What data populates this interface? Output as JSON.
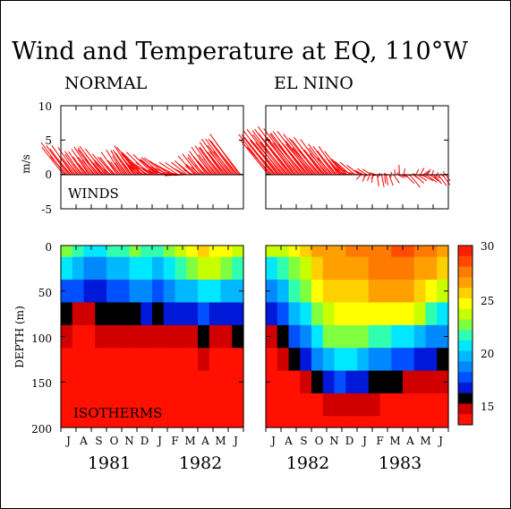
{
  "chart_data": {
    "title": "Wind and Temperature at EQ, 110°W",
    "panels": {
      "normal_title": "NORMAL",
      "elnino_title": "EL NINO"
    },
    "winds": {
      "type": "vector-stick",
      "ylabel": "m/s",
      "label": "WINDS",
      "ylim": [
        -5,
        10
      ],
      "yticks": [
        "10",
        "5",
        "0",
        "-5"
      ],
      "normal": [
        [
          3.5,
          4.0
        ],
        [
          2.5,
          3.0
        ],
        [
          2.0,
          2.5
        ],
        [
          3.0,
          3.5
        ],
        [
          2.2,
          2.0
        ],
        [
          1.8,
          2.6
        ],
        [
          2.5,
          3.2
        ],
        [
          3.4,
          2.4
        ],
        [
          2.6,
          1.8
        ],
        [
          3.0,
          1.2
        ],
        [
          2.2,
          0.6
        ],
        [
          2.0,
          1.6
        ],
        [
          2.2,
          2.5
        ],
        [
          2.8,
          3.4
        ],
        [
          3.6,
          4.2
        ],
        [
          4.2,
          5.0
        ]
      ],
      "elnino": [
        [
          4.5,
          5.0
        ],
        [
          5.0,
          5.5
        ],
        [
          5.2,
          6.0
        ],
        [
          4.8,
          5.5
        ],
        [
          4.5,
          5.0
        ],
        [
          3.5,
          4.0
        ],
        [
          2.5,
          3.0
        ],
        [
          2.0,
          1.0
        ],
        [
          1.2,
          0.2
        ],
        [
          0.5,
          -0.5
        ],
        [
          0.0,
          -1.0
        ],
        [
          -0.5,
          0.5
        ],
        [
          -1.0,
          -0.8
        ],
        [
          -1.2,
          0.2
        ],
        [
          -0.8,
          -0.5
        ],
        [
          -0.5,
          -0.5
        ]
      ]
    },
    "isotherms": {
      "type": "heatmap",
      "ylabel": "DEPTH (m)",
      "label": "ISOTHERMS",
      "ylim": [
        200,
        0
      ],
      "yticks": [
        "0",
        "50",
        "100",
        "150",
        "200"
      ],
      "depths": [
        0,
        25,
        50,
        75,
        100,
        125,
        150,
        175,
        200
      ],
      "normal": [
        [
          22.5,
          21.5,
          20.5,
          20.5,
          21.5,
          22,
          22.5,
          22,
          21.5,
          23,
          24,
          25,
          25.5,
          25,
          24.5,
          24
        ],
        [
          20.5,
          19.5,
          19,
          19,
          19.5,
          20,
          20.5,
          20.5,
          20,
          21,
          22,
          23,
          24,
          23.5,
          22.5,
          21.5
        ],
        [
          18,
          17.5,
          17,
          17,
          17.5,
          18,
          18.5,
          18.5,
          18,
          19,
          19.5,
          20,
          21,
          20.5,
          20,
          19.5
        ],
        [
          15.5,
          15,
          15,
          15.5,
          15.5,
          16,
          16,
          16.5,
          16,
          16.5,
          17,
          17,
          17.5,
          17,
          17,
          17
        ],
        [
          14.5,
          14,
          14,
          14.5,
          14.5,
          14.5,
          15,
          15,
          15,
          15,
          15,
          15,
          15.5,
          15,
          15,
          15.5
        ],
        [
          14,
          14,
          13.5,
          13.5,
          14,
          14,
          14,
          14,
          14,
          14,
          14,
          14,
          14.5,
          14,
          14,
          14
        ],
        [
          13.5,
          13.5,
          13.5,
          13.5,
          13.5,
          13.5,
          13.5,
          13.5,
          13.5,
          13.5,
          13.5,
          13.5,
          13.5,
          13.5,
          13.5,
          13.5
        ],
        [
          13.2,
          13.2,
          13.2,
          13.2,
          13.2,
          13.2,
          13.2,
          13.2,
          13.2,
          13.2,
          13.2,
          13.2,
          13.2,
          13.2,
          13.2,
          13.2
        ],
        [
          13,
          13,
          13,
          13,
          13,
          13,
          13,
          13,
          13,
          13,
          13,
          13,
          13,
          13,
          13,
          13
        ]
      ],
      "elnino": [
        [
          23.5,
          24,
          24.5,
          26,
          26.5,
          27,
          27,
          27.5,
          27.5,
          28,
          28,
          28.5,
          28.5,
          28,
          27.5,
          27
        ],
        [
          21,
          22,
          23,
          24,
          25.5,
          26.5,
          26.5,
          27,
          27,
          27.5,
          27.5,
          28,
          27.5,
          27,
          26.5,
          26
        ],
        [
          19,
          20,
          21.5,
          23,
          24.5,
          25.5,
          25.5,
          26,
          26,
          26.5,
          26.5,
          27,
          27,
          26,
          25,
          24
        ],
        [
          16.5,
          18,
          19.5,
          21,
          23,
          24,
          24.5,
          25,
          25,
          25,
          25,
          25,
          24.5,
          23.5,
          22,
          21
        ],
        [
          15,
          15.5,
          17.5,
          19,
          21,
          22.5,
          23,
          23,
          22.5,
          22,
          21.5,
          21,
          20.5,
          20,
          19,
          18.5
        ],
        [
          14,
          14.5,
          15.5,
          17,
          18.5,
          20,
          21,
          21,
          20,
          19,
          18.5,
          18,
          17.5,
          17,
          16.5,
          16
        ],
        [
          13.5,
          14,
          14,
          15,
          16,
          17,
          17.5,
          17,
          16.5,
          16,
          15.5,
          15.5,
          15,
          15,
          14.5,
          14.5
        ],
        [
          13.2,
          13.5,
          13.5,
          14,
          14,
          14.5,
          15,
          15,
          14.5,
          14.5,
          14,
          14,
          14,
          14,
          13.5,
          13.5
        ],
        [
          13,
          13,
          13,
          13.5,
          13.5,
          14,
          14,
          14,
          14,
          14,
          14,
          13.5,
          13.5,
          13.5,
          13.5,
          13.5
        ]
      ]
    },
    "colorbar": {
      "range": [
        13,
        30
      ],
      "ticks": [
        "30",
        "25",
        "20",
        "15"
      ],
      "colors": [
        "#ff1f00",
        "#ff4a00",
        "#ff7a00",
        "#ffa000",
        "#ffd000",
        "#ffff00",
        "#c8ff00",
        "#80ff40",
        "#30ffb0",
        "#00e8ff",
        "#00b8ff",
        "#0088ff",
        "#0050ff",
        "#0018d8",
        "#000000",
        "#d00000",
        "#ff1000"
      ]
    },
    "months": [
      "J",
      "A",
      "S",
      "O",
      "N",
      "D",
      "J",
      "F",
      "M",
      "A",
      "M",
      "J"
    ],
    "years": {
      "normal": [
        "1981",
        "1982"
      ],
      "elnino": [
        "1982",
        "1983"
      ]
    }
  }
}
